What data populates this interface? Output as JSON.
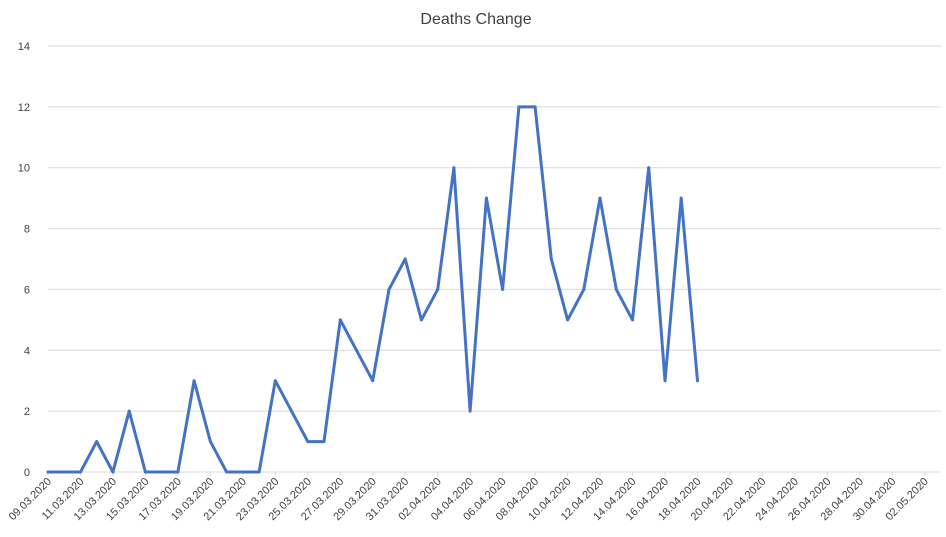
{
  "chart_data": {
    "type": "line",
    "title": "Deaths Change",
    "xlabel": "",
    "ylabel": "",
    "ylim": [
      0,
      14
    ],
    "yticks": [
      "0",
      "2",
      "4",
      "6",
      "8",
      "10",
      "12",
      "14"
    ],
    "grid": true,
    "legend": "none",
    "line_color": "#4472c4",
    "x_tick_labels": [
      "09.03.2020",
      "11.03.2020",
      "13.03.2020",
      "15.03.2020",
      "17.03.2020",
      "19.03.2020",
      "21.03.2020",
      "23.03.2020",
      "25.03.2020",
      "27.03.2020",
      "29.03.2020",
      "31.03.2020",
      "02.04.2020",
      "04.04.2020",
      "06.04.2020",
      "08.04.2020",
      "10.04.2020",
      "12.04.2020",
      "14.04.2020",
      "16.04.2020",
      "18.04.2020",
      "20.04.2020",
      "22.04.2020",
      "24.04.2020",
      "26.04.2020",
      "28.04.2020",
      "30.04.2020",
      "02.05.2020"
    ],
    "x": [
      "09.03.2020",
      "10.03.2020",
      "11.03.2020",
      "12.03.2020",
      "13.03.2020",
      "14.03.2020",
      "15.03.2020",
      "16.03.2020",
      "17.03.2020",
      "18.03.2020",
      "19.03.2020",
      "20.03.2020",
      "21.03.2020",
      "22.03.2020",
      "23.03.2020",
      "24.03.2020",
      "25.03.2020",
      "26.03.2020",
      "27.03.2020",
      "28.03.2020",
      "29.03.2020",
      "30.03.2020",
      "31.03.2020",
      "01.04.2020",
      "02.04.2020",
      "03.04.2020",
      "04.04.2020",
      "05.04.2020",
      "06.04.2020",
      "07.04.2020",
      "08.04.2020",
      "09.04.2020",
      "10.04.2020",
      "11.04.2020",
      "12.04.2020",
      "13.04.2020",
      "14.04.2020",
      "15.04.2020",
      "16.04.2020",
      "17.04.2020",
      "18.04.2020"
    ],
    "series": [
      {
        "values": [
          0,
          0,
          0,
          1,
          0,
          2,
          0,
          0,
          0,
          3,
          1,
          0,
          0,
          0,
          3,
          2,
          1,
          1,
          5,
          4,
          3,
          6,
          7,
          5,
          6,
          10,
          2,
          9,
          6,
          12,
          12,
          7,
          5,
          6,
          9,
          6,
          5,
          10,
          3,
          9,
          3
        ]
      }
    ]
  }
}
